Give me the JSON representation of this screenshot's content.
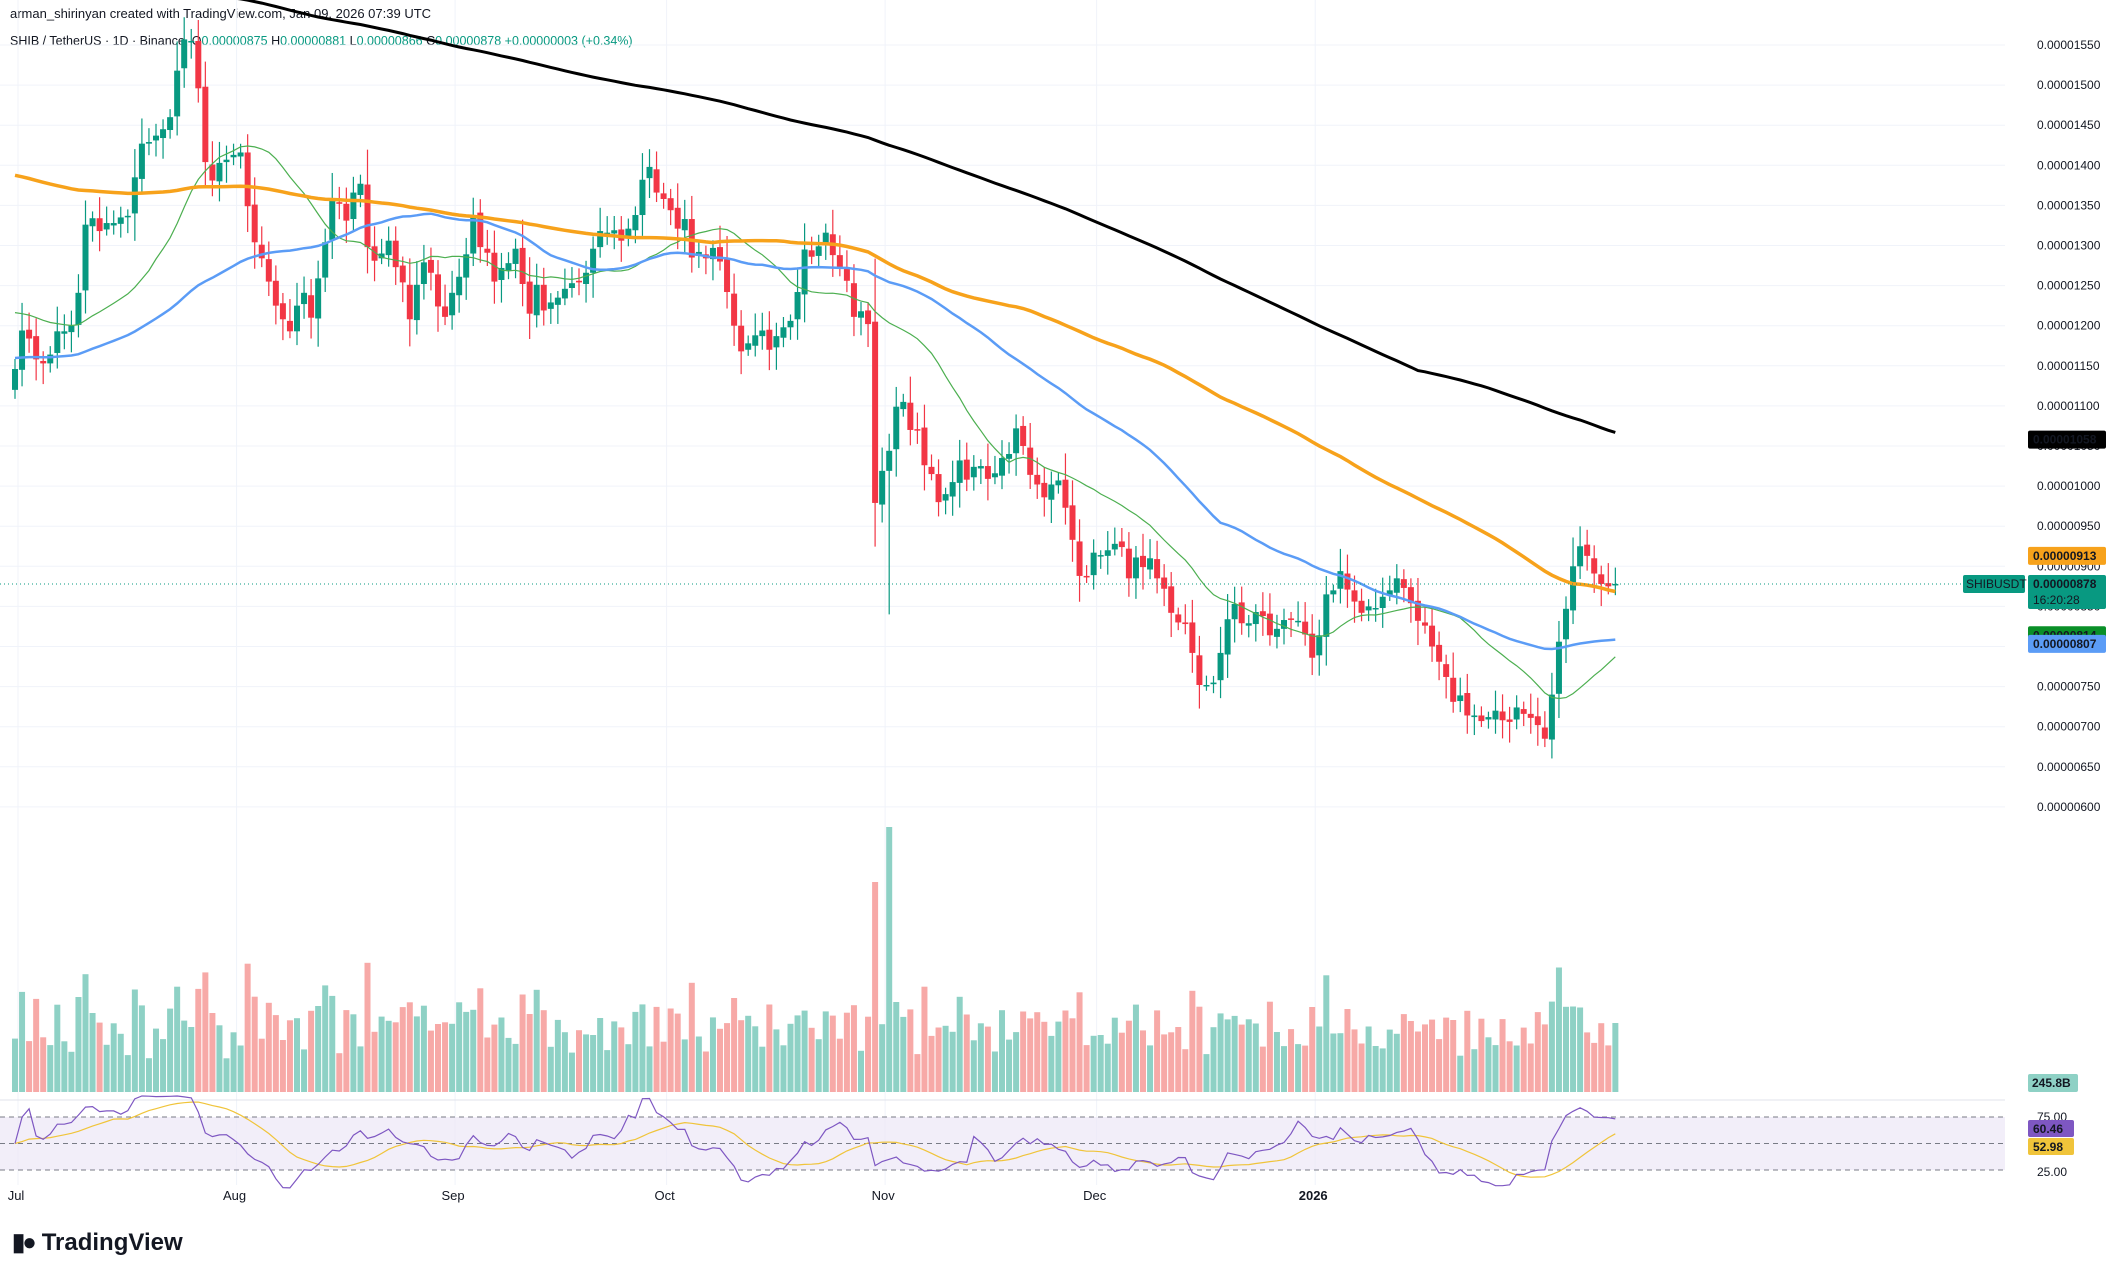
{
  "header": {
    "author_line": "arman_shirinyan created with TradingView.com, Jan 09, 2026 07:39 UTC"
  },
  "legend": {
    "symbol": "SHIB / TetherUS · 1D · Binance",
    "open_label": "O",
    "open": "0.00000875",
    "high_label": "H",
    "high": "0.00000881",
    "low_label": "L",
    "low": "0.00000866",
    "close_label": "C",
    "close": "0.00000878",
    "change": "+0.00000003 (+0.34%)"
  },
  "branding": {
    "logo_text": "TradingView"
  },
  "colors": {
    "up": "#089981",
    "down": "#F23645",
    "vol_up": "#8ED1C5",
    "vol_down": "#F7A9A7",
    "ma200": "#000000",
    "ma100": "#F7A21B",
    "ma50": "#5B9CF6",
    "ma20": "#4CAF50",
    "rsi": "#7E57C2",
    "rsi_ma": "#F0C43A"
  },
  "chart_data": {
    "type": "candlestick",
    "title": "SHIB / TetherUS · 1D · Binance",
    "y_tick_labels": [
      "0.00001550",
      "0.00001500",
      "0.00001450",
      "0.00001400",
      "0.00001350",
      "0.00001300",
      "0.00001250",
      "0.00001200",
      "0.00001150",
      "0.00001100",
      "0.00001050",
      "0.00001000",
      "0.00000950",
      "0.00000900",
      "0.00000850",
      "0.00000800",
      "0.00000750",
      "0.00000700",
      "0.00000650",
      "0.00000600"
    ],
    "ylim": [
      6e-06,
      1.59e-05
    ],
    "x_tick_labels": [
      "Jul",
      "Aug",
      "Sep",
      "Oct",
      "Nov",
      "Dec",
      "2026"
    ],
    "x_tick_bar_index": [
      0,
      31,
      62,
      92,
      123,
      153,
      184
    ],
    "price_labels": {
      "ma200": "0.00001058",
      "ma100": "0.00000913",
      "symbol_name": "SHIBUSDT",
      "last": "0.00000878",
      "countdown": "16:20:28",
      "ma20": "0.00000814",
      "ma50": "0.00000807",
      "volume": "245.8B"
    },
    "rsi": {
      "upper": "75.00",
      "lower": "25.00",
      "value": "60.46",
      "ma_value": "52.98"
    },
    "closes": [
      11.46,
      11.94,
      11.84,
      11.58,
      11.53,
      11.64,
      11.93,
      11.93,
      12.0,
      12.41,
      13.26,
      13.34,
      13.18,
      13.28,
      13.28,
      13.35,
      13.37,
      13.85,
      14.27,
      14.29,
      14.37,
      14.45,
      14.6,
      15.18,
      15.57,
      15.55,
      14.96,
      14.04,
      13.81,
      14.03,
      14.07,
      14.13,
      14.16,
      13.49,
      13.04,
      12.84,
      12.55,
      12.25,
      12.08,
      11.93,
      12.25,
      12.41,
      12.1,
      12.59,
      13.04,
      13.56,
      13.52,
      13.31,
      13.66,
      13.77,
      12.98,
      12.81,
      12.9,
      13.06,
      12.73,
      12.54,
      12.08,
      12.51,
      12.79,
      12.66,
      12.24,
      12.11,
      12.41,
      12.61,
      12.89,
      13.38,
      12.98,
      12.91,
      12.55,
      12.72,
      12.78,
      12.96,
      12.52,
      12.15,
      12.51,
      12.19,
      12.29,
      12.35,
      12.46,
      12.53,
      12.54,
      12.66,
      12.96,
      13.18,
      13.16,
      13.19,
      13.06,
      13.21,
      13.38,
      13.82,
      13.98,
      13.66,
      13.58,
      13.44,
      13.21,
      13.33,
      12.85,
      12.92,
      12.84,
      12.97,
      12.8,
      12.42,
      12.0,
      11.68,
      11.78,
      11.88,
      11.94,
      11.7,
      11.87,
      11.98,
      12.06,
      12.42,
      12.95,
      12.86,
      12.99,
      13.16,
      12.88,
      12.71,
      12.56,
      12.11,
      12.18,
      12.02,
      9.79,
      10.19,
      10.44,
      10.99,
      11.05,
      10.7,
      10.7,
      10.26,
      10.15,
      9.8,
      9.9,
      10.05,
      10.32,
      10.08,
      10.24,
      10.25,
      10.09,
      10.16,
      10.35,
      10.4,
      10.72,
      10.5,
      10.14,
      10.02,
      9.86,
      10.02,
      10.07,
      9.73,
      9.33,
      8.88,
      8.87,
      9.17,
      9.14,
      9.2,
      9.28,
      9.24,
      8.85,
      9.11,
      8.99,
      9.1,
      8.85,
      8.72,
      8.42,
      8.3,
      8.28,
      7.92,
      7.52,
      7.52,
      7.55,
      7.92,
      8.34,
      8.53,
      8.29,
      8.29,
      8.43,
      8.38,
      8.14,
      8.22,
      8.33,
      8.34,
      8.32,
      8.15,
      7.86,
      8.14,
      8.65,
      8.7,
      8.94,
      8.71,
      8.56,
      8.42,
      8.5,
      8.48,
      8.62,
      8.7,
      8.85,
      8.73,
      8.54,
      8.32,
      8.26,
      8.0,
      7.81,
      7.62,
      7.31,
      7.39,
      7.14,
      7.14,
      7.07,
      7.12,
      7.2,
      7.08,
      7.06,
      7.24,
      7.16,
      7.11,
      7.02,
      6.85,
      7.4,
      8.06,
      8.47,
      9.0,
      9.25,
      9.13,
      8.91,
      8.78,
      8.75,
      8.78
    ],
    "candle_note": "Daily OHLC; prices in units of 1e-6 USDT (i.e. 11.46 = 0.00001146)",
    "last_visible": {
      "open": 8.75,
      "high": 8.81,
      "low": 8.66,
      "close": 8.78
    }
  }
}
